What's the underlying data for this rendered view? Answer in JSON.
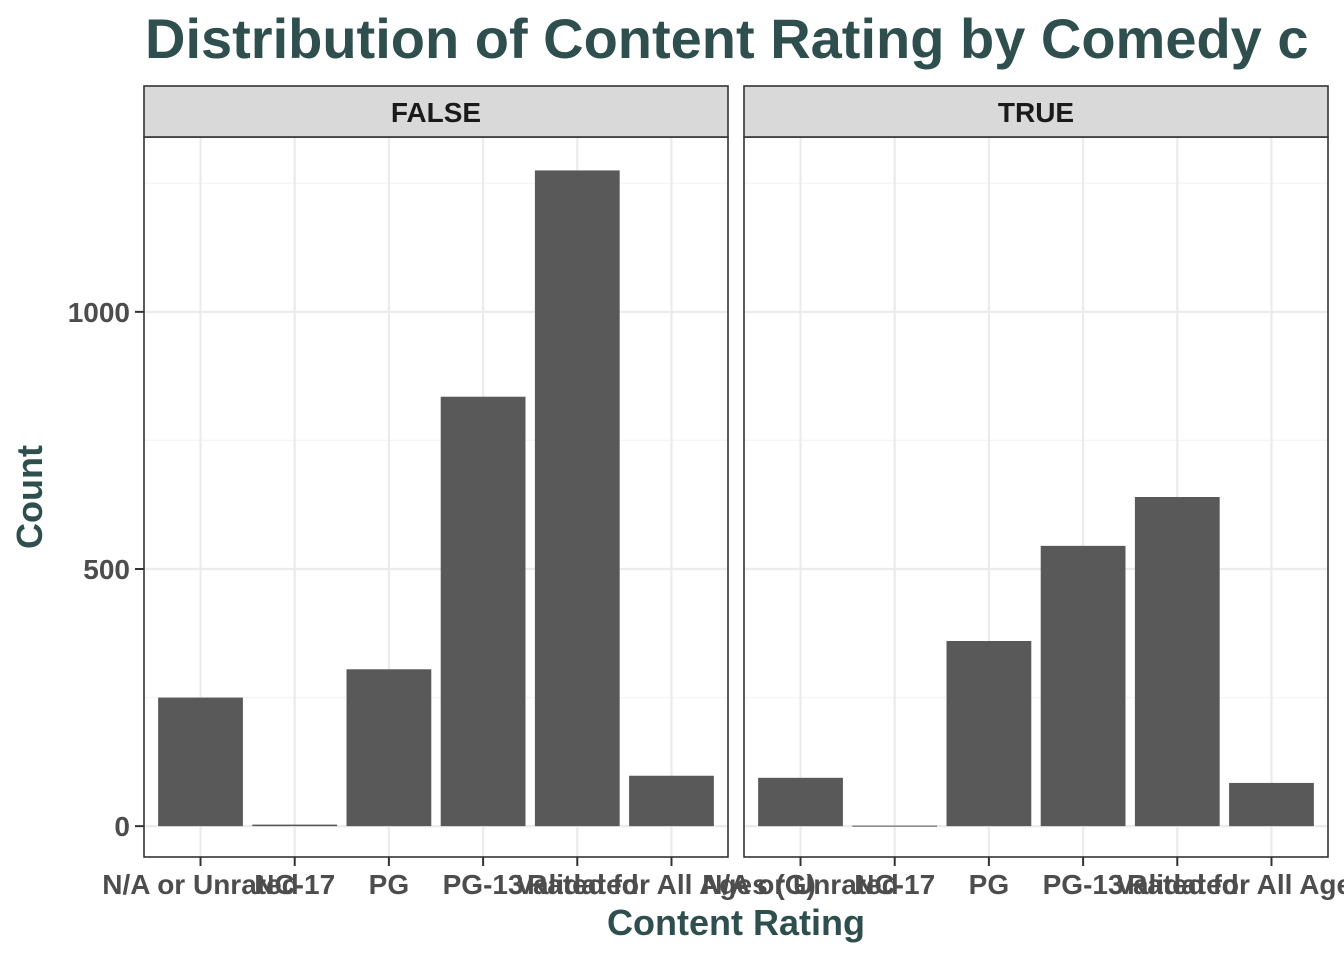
{
  "chart_data": {
    "type": "bar",
    "title": "Distribution of Content Rating by Comedy c",
    "xlabel": "Content Rating",
    "ylabel": "Count",
    "ylim": [
      -60,
      1340
    ],
    "yticks": [
      0,
      500,
      1000
    ],
    "grid": true,
    "bar_color": "#595959",
    "title_color": "#2f4f4f",
    "categories": [
      "N/A or Unrated",
      "NC-17",
      "PG",
      "PG-13",
      "Validated",
      "Rated for All Ages (G)"
    ],
    "facets": [
      {
        "label": "FALSE",
        "values": [
          250,
          3,
          305,
          835,
          1275,
          98
        ]
      },
      {
        "label": "TRUE",
        "values": [
          94,
          1,
          360,
          545,
          640,
          84
        ]
      }
    ]
  }
}
